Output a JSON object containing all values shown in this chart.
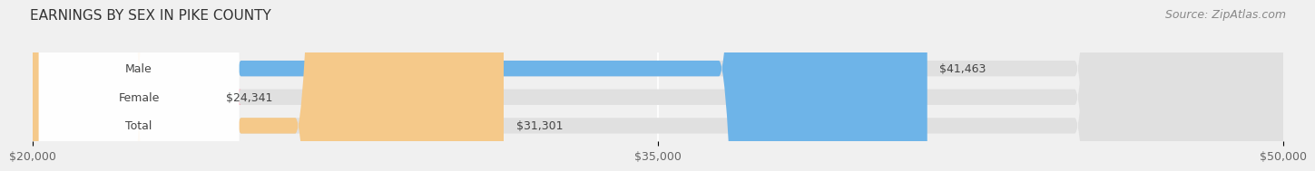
{
  "title": "EARNINGS BY SEX IN PIKE COUNTY",
  "source": "Source: ZipAtlas.com",
  "categories": [
    "Male",
    "Female",
    "Total"
  ],
  "values": [
    41463,
    24341,
    31301
  ],
  "bar_colors": [
    "#6eb4e8",
    "#f4a7b9",
    "#f5c98a"
  ],
  "bar_labels": [
    "$41,463",
    "$24,341",
    "$31,301"
  ],
  "xlim_min": 20000,
  "xlim_max": 50000,
  "xticks": [
    20000,
    35000,
    50000
  ],
  "xtick_labels": [
    "$20,000",
    "$35,000",
    "$50,000"
  ],
  "background_color": "#f0f0f0",
  "title_fontsize": 11,
  "source_fontsize": 9,
  "label_fontsize": 9,
  "tick_fontsize": 9,
  "bar_height": 0.55
}
